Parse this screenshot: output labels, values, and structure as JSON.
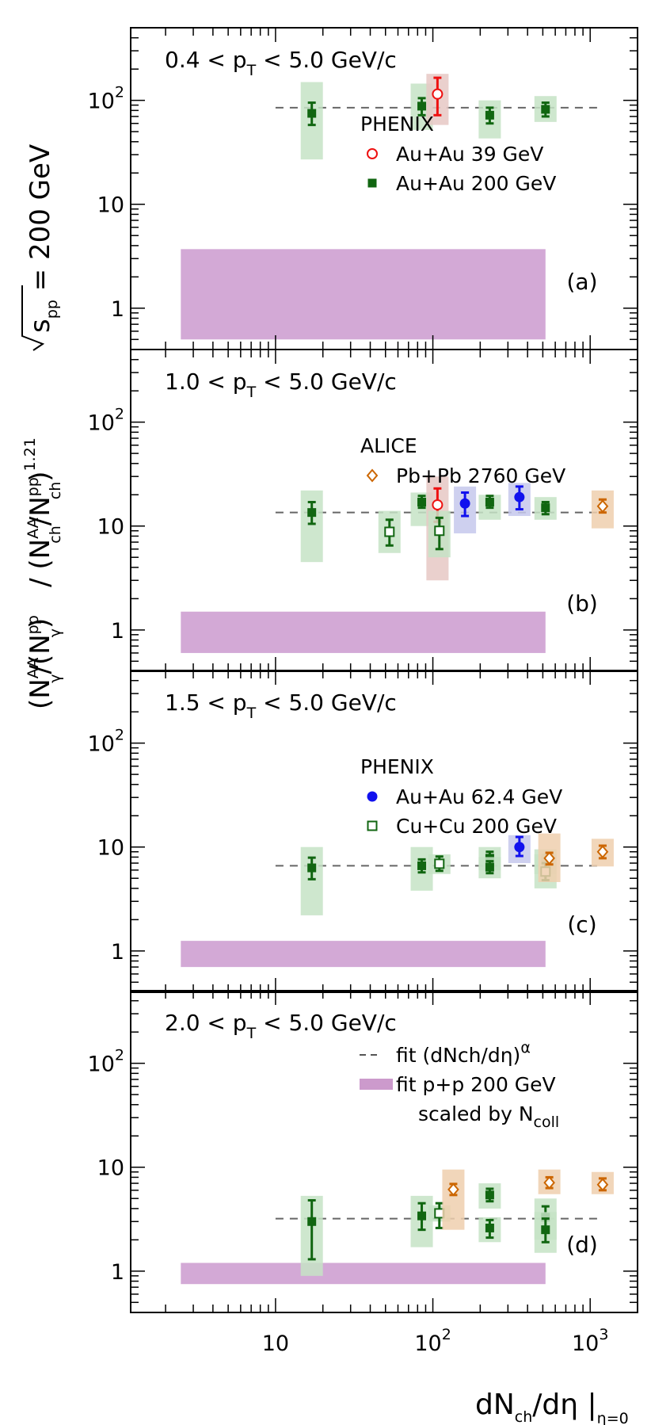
{
  "chart_data": {
    "type": "scatter",
    "x_scale": "log",
    "y_scale": "log",
    "xlim": [
      1.2,
      2000
    ],
    "ylim": [
      0.4,
      500
    ],
    "x_ticks": [
      "10",
      "10",
      "2",
      "10",
      "3"
    ],
    "y_ticks": [
      {
        "value": 1,
        "base": "1",
        "exp": ""
      },
      {
        "value": 10,
        "base": "10",
        "exp": ""
      },
      {
        "value": 100,
        "base": "10",
        "exp": "2"
      }
    ],
    "xlabel": {
      "main": "dN",
      "sub1": "ch",
      "mid": "/dη |",
      "sub2": "η=0"
    },
    "ylabel": {
      "sqrt_s": "s",
      "sqrt_sub": "pp",
      "energy": " = 200 GeV",
      "ratio": "(N",
      "ratio_rest": "/",
      "div": "/  (N",
      "exponent": "1.21",
      "aa": "AA",
      "pp": "pp",
      "gamma": "γ",
      "ch": "ch"
    },
    "panels": [
      {
        "id": "a",
        "range": {
          "left": "0.4 < p",
          "sub": "T",
          "right": " < 5.0 GeV/c"
        },
        "tag": "(a)",
        "fit_level": 85,
        "pp_band": [
          0.5,
          3.7
        ],
        "legend_header": "PHENIX",
        "legend": [
          {
            "marker": "open-circle",
            "color": "#ee1111",
            "label": "Au+Au 39 GeV"
          },
          {
            "marker": "filled-square",
            "color": "#116611",
            "label": "Au+Au 200 GeV"
          }
        ],
        "points": [
          {
            "x": 17,
            "y": 75,
            "yerr": [
              58,
              95
            ],
            "sys": [
              27,
              150
            ],
            "series": "auau200"
          },
          {
            "x": 85,
            "y": 88,
            "yerr": [
              72,
              105
            ],
            "sys": [
              52,
              145
            ],
            "series": "auau200"
          },
          {
            "x": 107,
            "y": 115,
            "yerr": [
              72,
              165
            ],
            "sys": [
              58,
              180
            ],
            "series": "auau39"
          },
          {
            "x": 230,
            "y": 72,
            "yerr": [
              60,
              85
            ],
            "sys": [
              43,
              100
            ],
            "series": "auau200"
          },
          {
            "x": 520,
            "y": 82,
            "yerr": [
              70,
              95
            ],
            "sys": [
              62,
              110
            ],
            "series": "auau200"
          }
        ]
      },
      {
        "id": "b",
        "range": {
          "left": "1.0 < p",
          "sub": "T",
          "right": " < 5.0 GeV/c"
        },
        "tag": "(b)",
        "fit_level": 13.5,
        "pp_band": [
          0.6,
          1.5
        ],
        "legend_header": "ALICE",
        "legend": [
          {
            "marker": "open-diamond",
            "color": "#cc6600",
            "label": "Pb+Pb 2760 GeV"
          }
        ],
        "points": [
          {
            "x": 17,
            "y": 13.5,
            "yerr": [
              10.5,
              17
            ],
            "sys": [
              4.5,
              22
            ],
            "series": "auau200"
          },
          {
            "x": 53,
            "y": 8.8,
            "yerr": [
              6.5,
              11.5
            ],
            "sys": [
              5.5,
              14
            ],
            "series": "cucu200"
          },
          {
            "x": 85,
            "y": 17,
            "yerr": [
              15,
              19.5
            ],
            "sys": [
              10,
              21
            ],
            "series": "auau200"
          },
          {
            "x": 107,
            "y": 16,
            "yerr": [
              11,
              23
            ],
            "sys": [
              3,
              30
            ],
            "series": "auau39"
          },
          {
            "x": 110,
            "y": 9,
            "yerr": [
              6,
              12
            ],
            "sys": [
              5,
              14
            ],
            "series": "cucu200"
          },
          {
            "x": 160,
            "y": 16.5,
            "yerr": [
              12.5,
              21
            ],
            "sys": [
              8.5,
              24
            ],
            "series": "auau62"
          },
          {
            "x": 230,
            "y": 17,
            "yerr": [
              15,
              19.5
            ],
            "sys": [
              11.5,
              20
            ],
            "series": "auau200"
          },
          {
            "x": 355,
            "y": 19,
            "yerr": [
              14.5,
              24
            ],
            "sys": [
              12.5,
              26
            ],
            "series": "auau62"
          },
          {
            "x": 520,
            "y": 15,
            "yerr": [
              13,
              17
            ],
            "sys": [
              11.5,
              19
            ],
            "series": "auau200"
          },
          {
            "x": 1200,
            "y": 15.5,
            "yerr": [
              13.5,
              18
            ],
            "sys": [
              9.5,
              22
            ],
            "series": "pbpb2760"
          }
        ]
      },
      {
        "id": "c",
        "range": {
          "left": "1.5 < p",
          "sub": "T",
          "right": " < 5.0 GeV/c"
        },
        "tag": "(c)",
        "fit_level": 6.6,
        "pp_band": [
          0.7,
          1.25
        ],
        "legend_header": "PHENIX",
        "legend": [
          {
            "marker": "filled-circle",
            "color": "#1111ee",
            "label": "Au+Au 62.4 GeV"
          },
          {
            "marker": "open-square",
            "color": "#116611",
            "label": "Cu+Cu 200 GeV"
          }
        ],
        "points": [
          {
            "x": 17,
            "y": 6.3,
            "yerr": [
              4.9,
              7.9
            ],
            "sys": [
              2.2,
              10
            ],
            "series": "auau200"
          },
          {
            "x": 85,
            "y": 6.6,
            "yerr": [
              5.7,
              7.6
            ],
            "sys": [
              3.8,
              10
            ],
            "series": "auau200"
          },
          {
            "x": 110,
            "y": 6.9,
            "yerr": [
              5.9,
              8.1
            ],
            "sys": [
              5.5,
              8.5
            ],
            "series": "cucu200"
          },
          {
            "x": 230,
            "y": 7.8,
            "yerr": [
              6.9,
              9
            ],
            "sys": [
              6,
              10
            ],
            "series": "auau200"
          },
          {
            "x": 230,
            "y": 6.4,
            "yerr": [
              5.6,
              7.3
            ],
            "sys": [
              5,
              8
            ],
            "series": "auau200"
          },
          {
            "x": 355,
            "y": 10,
            "yerr": [
              8.2,
              12.5
            ],
            "sys": [
              7,
              13
            ],
            "series": "auau62"
          },
          {
            "x": 520,
            "y": 7.4,
            "yerr": [
              6.5,
              8.3
            ],
            "sys": [
              5.5,
              9.5
            ],
            "series": "auau200"
          },
          {
            "x": 520,
            "y": 5.8,
            "yerr": [
              4.8,
              7
            ],
            "sys": [
              4,
              8.5
            ],
            "series": "cucu200"
          },
          {
            "x": 550,
            "y": 7.8,
            "yerr": [
              6.8,
              8.8
            ],
            "sys": [
              4.6,
              13.5
            ],
            "series": "pbpb2760"
          },
          {
            "x": 1200,
            "y": 9,
            "yerr": [
              7.8,
              10.3
            ],
            "sys": [
              6.5,
              12
            ],
            "series": "pbpb2760"
          }
        ]
      },
      {
        "id": "d",
        "range": {
          "left": "2.0 < p",
          "sub": "T",
          "right": " < 5.0 GeV/c"
        },
        "tag": "(d)",
        "fit_level": 3.2,
        "pp_band": [
          0.75,
          1.2
        ],
        "legend_header": "",
        "legend": [
          {
            "marker": "dashed-line",
            "color": "#555555",
            "label": "fit (dNch/dη)",
            "sup": "α"
          },
          {
            "marker": "band",
            "color": "#cc9acc",
            "label": "fit p+p 200 GeV"
          },
          {
            "marker": "none",
            "color": "#000000",
            "label": "scaled by N",
            "sub": "coll"
          }
        ],
        "points": [
          {
            "x": 17,
            "y": 3,
            "yerr": [
              1.3,
              4.8
            ],
            "sys": [
              0.9,
              5.3
            ],
            "series": "auau200"
          },
          {
            "x": 85,
            "y": 3.4,
            "yerr": [
              2.5,
              4.5
            ],
            "sys": [
              1.7,
              5.3
            ],
            "series": "auau200"
          },
          {
            "x": 110,
            "y": 3.6,
            "yerr": [
              2.6,
              4.5
            ],
            "sys": [
              3,
              4.3
            ],
            "series": "cucu200"
          },
          {
            "x": 135,
            "y": 6.1,
            "yerr": [
              5.4,
              6.9
            ],
            "sys": [
              2.5,
              9.5
            ],
            "series": "pbpb2760"
          },
          {
            "x": 230,
            "y": 5.4,
            "yerr": [
              4.7,
              6.2
            ],
            "sys": [
              4,
              7
            ],
            "series": "auau200"
          },
          {
            "x": 230,
            "y": 2.6,
            "yerr": [
              2.1,
              3.1
            ],
            "sys": [
              1.9,
              3.3
            ],
            "series": "auau200"
          },
          {
            "x": 520,
            "y": 3.3,
            "yerr": [
              2.6,
              4.2
            ],
            "sys": [
              2,
              5
            ],
            "series": "auau200"
          },
          {
            "x": 520,
            "y": 2.5,
            "yerr": [
              1.9,
              3.2
            ],
            "sys": [
              1.5,
              3.7
            ],
            "series": "auau200"
          },
          {
            "x": 550,
            "y": 7.1,
            "yerr": [
              6.3,
              8
            ],
            "sys": [
              5.5,
              9.5
            ],
            "series": "pbpb2760"
          },
          {
            "x": 1200,
            "y": 6.8,
            "yerr": [
              6,
              7.8
            ],
            "sys": [
              5.5,
              9
            ],
            "series": "pbpb2760"
          }
        ]
      }
    ],
    "series_styles": {
      "auau200": {
        "color": "#116611",
        "marker": "filled-square",
        "band": "#c6e3c6"
      },
      "auau39": {
        "color": "#ee1111",
        "marker": "open-circle",
        "band": "#e6c8c4"
      },
      "auau62": {
        "color": "#1111ee",
        "marker": "filled-circle",
        "band": "#c6c8ec"
      },
      "cucu200": {
        "color": "#116611",
        "marker": "open-square",
        "band": "#c6e3c6"
      },
      "pbpb2760": {
        "color": "#cc6600",
        "marker": "open-diamond",
        "band": "#efcfae"
      }
    },
    "pp_fit_x": [
      2.5,
      520
    ],
    "fit_x": [
      10,
      1200
    ],
    "pp_band_color": "#d3a9d6",
    "fit_line_color": "#666666"
  }
}
